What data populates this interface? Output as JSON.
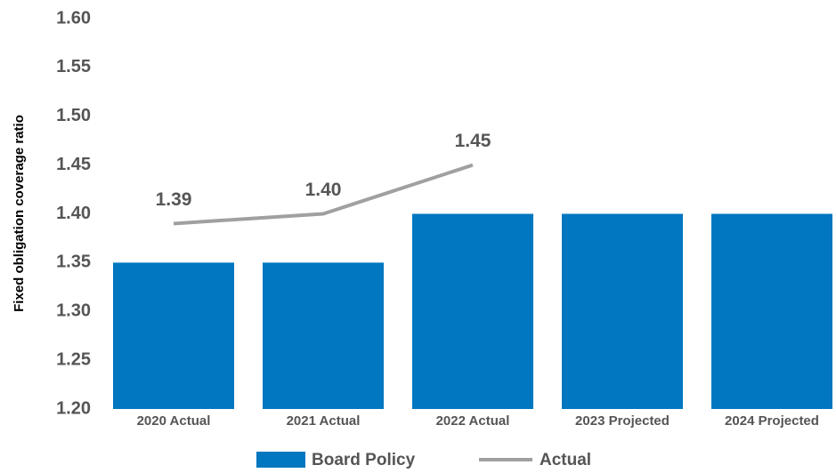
{
  "chart_data": {
    "type": "bar_line",
    "y_label": "Fixed obligation coverage ratio",
    "categories": [
      "2020 Actual",
      "2021 Actual",
      "2022 Actual",
      "2023 Projected",
      "2024 Projected"
    ],
    "series": [
      {
        "name": "Board Policy",
        "type": "bar",
        "color": "#0077c0",
        "values": [
          1.35,
          1.35,
          1.4,
          1.4,
          1.4
        ]
      },
      {
        "name": "Actual",
        "type": "line",
        "color": "#a0a0a0",
        "values": [
          1.39,
          1.4,
          1.45,
          null,
          null
        ],
        "value_labels": [
          "1.39",
          "1.40",
          "1.45",
          null,
          null
        ]
      }
    ],
    "ylim": [
      1.2,
      1.6
    ],
    "yticks": [
      {
        "value": 1.2,
        "label": "1.20"
      },
      1.25,
      {
        "value": 1.3,
        "label": "1.30"
      },
      1.35,
      {
        "value": 1.4,
        "label": "1.40"
      },
      1.45,
      {
        "value": 1.5,
        "label": "1.50"
      },
      1.55,
      {
        "value": 1.6,
        "label": "1.60"
      }
    ],
    "legend": "bottom"
  }
}
